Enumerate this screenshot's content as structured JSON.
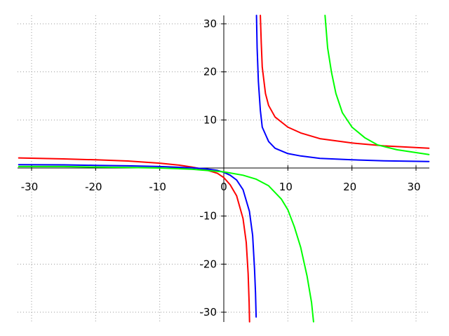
{
  "chart_data": {
    "type": "line",
    "title": "",
    "xlabel": "",
    "ylabel": "",
    "xlim": [
      -32.2,
      32.0
    ],
    "ylim": [
      -32.0,
      32.0
    ],
    "grid": true,
    "legend": "none",
    "x_ticks": [
      -30,
      -20,
      -10,
      0,
      10,
      20,
      30
    ],
    "y_ticks": [
      -30,
      -20,
      -10,
      0,
      10,
      20,
      30
    ],
    "x_tick_labels": [
      "-30",
      "-20",
      "-10",
      "0",
      "10",
      "20",
      "30"
    ],
    "y_tick_labels": [
      "-30",
      "-20",
      "-10",
      "0",
      "10",
      "20",
      "30"
    ],
    "series": [
      {
        "color": "#ff0000",
        "style": "solid",
        "points": [
          [
            -32,
            2.1
          ],
          [
            -25,
            1.9
          ],
          [
            -20,
            1.7
          ],
          [
            -15,
            1.45
          ],
          [
            -10,
            1.0
          ],
          [
            -7,
            0.6
          ],
          [
            -5,
            0.2
          ],
          [
            -3,
            -0.3
          ],
          [
            -1,
            -1.1
          ],
          [
            0,
            -2.0
          ],
          [
            1,
            -3.5
          ],
          [
            2,
            -5.8
          ],
          [
            3,
            -10.5
          ],
          [
            3.5,
            -15.5
          ],
          [
            3.8,
            -22.0
          ],
          [
            3.95,
            -28.0
          ],
          [
            4.02,
            -32.0
          ],
          null,
          [
            5.7,
            32.0
          ],
          [
            5.85,
            26.0
          ],
          [
            6.0,
            21.0
          ],
          [
            6.5,
            15.5
          ],
          [
            7,
            13.0
          ],
          [
            8,
            10.6
          ],
          [
            10,
            8.5
          ],
          [
            12,
            7.3
          ],
          [
            15,
            6.1
          ],
          [
            20,
            5.2
          ],
          [
            25,
            4.6
          ],
          [
            32,
            4.1
          ]
        ]
      },
      {
        "color": "#0000ff",
        "style": "solid",
        "points": [
          [
            -32,
            0.7
          ],
          [
            -25,
            0.65
          ],
          [
            -20,
            0.55
          ],
          [
            -15,
            0.45
          ],
          [
            -10,
            0.3
          ],
          [
            -7,
            0.15
          ],
          [
            -5,
            0.05
          ],
          [
            -3,
            -0.15
          ],
          [
            -1,
            -0.5
          ],
          [
            0,
            -0.9
          ],
          [
            1,
            -1.5
          ],
          [
            2,
            -2.5
          ],
          [
            3,
            -4.5
          ],
          [
            4,
            -9.0
          ],
          [
            4.5,
            -14.0
          ],
          [
            4.8,
            -21.0
          ],
          [
            4.95,
            -26.0
          ],
          [
            5.05,
            -31.0
          ],
          null,
          [
            5.1,
            32.0
          ],
          [
            5.2,
            25.0
          ],
          [
            5.4,
            18.0
          ],
          [
            5.7,
            12.0
          ],
          [
            6,
            8.5
          ],
          [
            7,
            5.5
          ],
          [
            8,
            4.1
          ],
          [
            10,
            3.0
          ],
          [
            12,
            2.5
          ],
          [
            15,
            2.0
          ],
          [
            20,
            1.7
          ],
          [
            25,
            1.5
          ],
          [
            32,
            1.35
          ]
        ]
      },
      {
        "color": "#00ff00",
        "style": "solid",
        "points": [
          [
            -32,
            0.3
          ],
          [
            -25,
            0.3
          ],
          [
            -20,
            0.2
          ],
          [
            -15,
            0.1
          ],
          [
            -10,
            0.0
          ],
          [
            -5,
            -0.25
          ],
          [
            0,
            -0.8
          ],
          [
            3,
            -1.5
          ],
          [
            5,
            -2.3
          ],
          [
            7,
            -3.7
          ],
          [
            9,
            -6.5
          ],
          [
            10,
            -8.7
          ],
          [
            11,
            -12.2
          ],
          [
            12,
            -16.5
          ],
          [
            13,
            -22.5
          ],
          [
            13.7,
            -28.0
          ],
          [
            14.0,
            -32.0
          ],
          null,
          [
            15.8,
            32.0
          ],
          [
            16.2,
            25.0
          ],
          [
            16.8,
            20.0
          ],
          [
            17.5,
            15.5
          ],
          [
            18.5,
            11.5
          ],
          [
            20,
            8.5
          ],
          [
            22,
            6.3
          ],
          [
            24,
            4.8
          ],
          [
            27,
            3.8
          ],
          [
            32,
            2.8
          ]
        ]
      }
    ]
  }
}
